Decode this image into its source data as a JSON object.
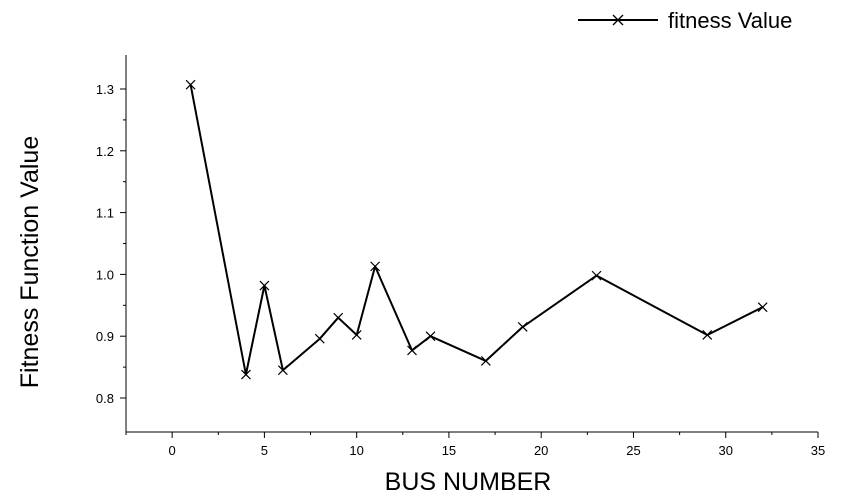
{
  "chart_data": {
    "type": "line",
    "xlabel": "BUS NUMBER",
    "ylabel": "Fitness Function Value",
    "xlim": [
      -2.5,
      35
    ],
    "ylim": [
      0.745,
      1.355
    ],
    "xticks": [
      0,
      5,
      10,
      15,
      20,
      25,
      30,
      35
    ],
    "yticks": [
      0.8,
      0.9,
      1.0,
      1.1,
      1.2,
      1.3
    ],
    "xtick_labels": [
      "0",
      "5",
      "10",
      "15",
      "20",
      "25",
      "30",
      "35"
    ],
    "ytick_labels": [
      "0.8",
      "0.9",
      "1.0",
      "1.1",
      "1.2",
      "1.3"
    ],
    "grid": false,
    "legend_position": "top-right",
    "series": [
      {
        "name": "fitness Value",
        "marker": "x",
        "color": "#000000",
        "x": [
          1,
          4,
          5,
          6,
          8,
          9,
          10,
          11,
          13,
          14,
          17,
          19,
          23,
          29,
          32
        ],
        "y": [
          1.307,
          0.838,
          0.982,
          0.845,
          0.896,
          0.93,
          0.902,
          1.013,
          0.877,
          0.9,
          0.86,
          0.915,
          0.998,
          0.902,
          0.947
        ]
      }
    ]
  }
}
